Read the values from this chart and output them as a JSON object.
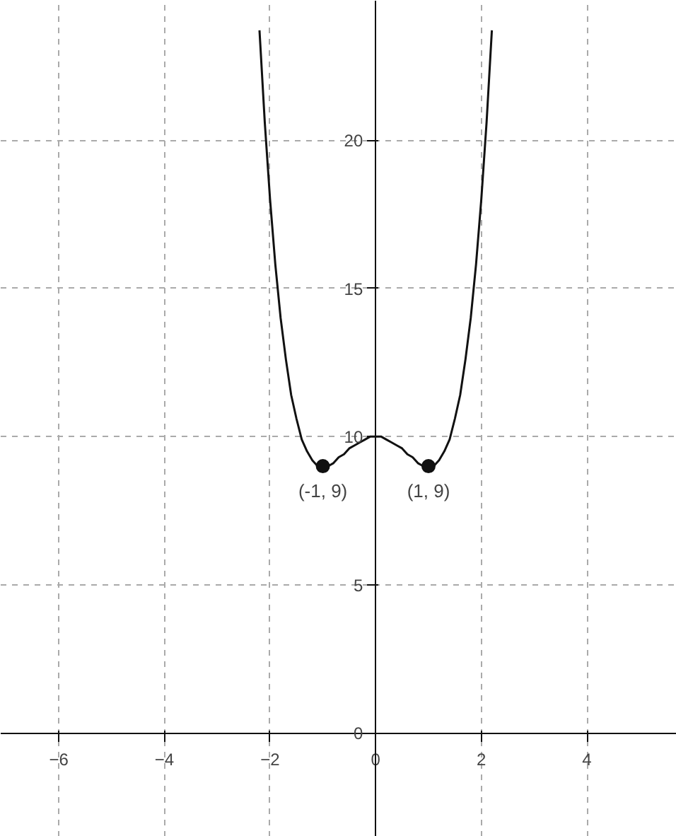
{
  "chart_data": {
    "type": "line",
    "series": [
      {
        "color": "#111111",
        "x": [
          -2.2,
          -2.1,
          -2.0,
          -1.9,
          -1.8,
          -1.7,
          -1.6,
          -1.5,
          -1.4,
          -1.3,
          -1.2,
          -1.1,
          -1.0,
          -0.9,
          -0.8,
          -0.7,
          -0.6,
          -0.5,
          -0.4,
          -0.3,
          -0.2,
          -0.1,
          0.0,
          0.1,
          0.2,
          0.3,
          0.4,
          0.5,
          0.6,
          0.7,
          0.8,
          0.9,
          1.0,
          1.1,
          1.2,
          1.3,
          1.4,
          1.5,
          1.6,
          1.7,
          1.8,
          1.9,
          2.0,
          2.1,
          2.2
        ],
        "values": [
          23.7,
          20.6,
          18.0,
          15.8,
          14.0,
          12.6,
          11.4,
          10.6,
          9.9,
          9.5,
          9.2,
          9.0,
          9.0,
          9.0,
          9.1,
          9.3,
          9.4,
          9.6,
          9.7,
          9.8,
          9.9,
          10.0,
          10.0,
          10.0,
          9.9,
          9.8,
          9.7,
          9.6,
          9.4,
          9.3,
          9.1,
          9.0,
          9.0,
          9.0,
          9.2,
          9.5,
          9.9,
          10.6,
          11.4,
          12.6,
          14.0,
          15.8,
          18.0,
          20.6,
          23.7
        ]
      },
      {
        "type": "scatter",
        "marker": "circle",
        "color": "#111111",
        "x": [
          -1,
          1
        ],
        "values": [
          9,
          9
        ]
      }
    ],
    "annotations": [
      {
        "text": "(-1, 9)",
        "x": -1,
        "y": 9
      },
      {
        "text": "(1, 9)",
        "x": 1,
        "y": 9
      }
    ],
    "xlim": [
      -7.1,
      5.7
    ],
    "ylim": [
      -3.5,
      24.7
    ],
    "xticks": [
      -6,
      -4,
      -2,
      0,
      2,
      4
    ],
    "yticks": [
      0,
      5,
      10,
      15,
      20
    ],
    "grid": true
  }
}
